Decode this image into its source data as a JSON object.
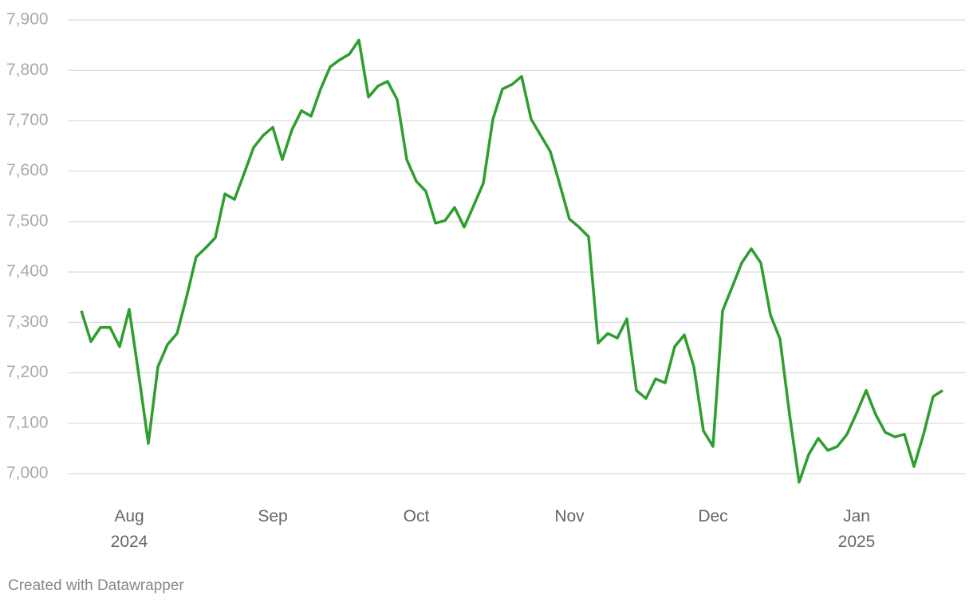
{
  "chart_data": {
    "type": "line",
    "categories": [
      null,
      null,
      null,
      null,
      null,
      "Aug 2024",
      null,
      null,
      null,
      null,
      null,
      null,
      null,
      null,
      null,
      null,
      null,
      null,
      null,
      null,
      "Sep",
      null,
      null,
      null,
      null,
      null,
      null,
      null,
      null,
      null,
      null,
      null,
      null,
      null,
      null,
      "Oct",
      null,
      null,
      null,
      null,
      null,
      null,
      null,
      null,
      null,
      null,
      null,
      null,
      null,
      null,
      null,
      "Nov",
      null,
      null,
      null,
      null,
      null,
      null,
      null,
      null,
      null,
      null,
      null,
      null,
      null,
      null,
      "Dec",
      null,
      null,
      null,
      null,
      null,
      null,
      null,
      null,
      null,
      null,
      null,
      null,
      null,
      null,
      "Jan 2025",
      null,
      null,
      null,
      null,
      null,
      null,
      null,
      null,
      null
    ],
    "values": [
      7323,
      7262,
      7290,
      7290,
      7252,
      7326,
      7196,
      7060,
      7212,
      7256,
      7278,
      7351,
      7430,
      7448,
      7468,
      7555,
      7544,
      7595,
      7647,
      7671,
      7687,
      7623,
      7682,
      7720,
      7709,
      7763,
      7807,
      7821,
      7832,
      7860,
      7747,
      7769,
      7778,
      7742,
      7623,
      7580,
      7560,
      7497,
      7502,
      7528,
      7489,
      7532,
      7576,
      7703,
      7763,
      7772,
      7788,
      7703,
      7671,
      7639,
      7573,
      7505,
      7489,
      7470,
      7259,
      7278,
      7269,
      7307,
      7165,
      7149,
      7188,
      7180,
      7252,
      7275,
      7212,
      7085,
      7054,
      7323,
      7370,
      7418,
      7446,
      7418,
      7315,
      7267,
      7117,
      6983,
      7038,
      7070,
      7046,
      7054,
      7078,
      7120,
      7165,
      7117,
      7082,
      7073,
      7078,
      7014,
      7078,
      7153,
      7165
    ],
    "color": "#2e9e2e",
    "ylim": [
      6950,
      7920
    ],
    "yticks": [
      {
        "value": 7000,
        "label": "7,000"
      },
      {
        "value": 7100,
        "label": "7,100"
      },
      {
        "value": 7200,
        "label": "7,200"
      },
      {
        "value": 7300,
        "label": "7,300"
      },
      {
        "value": 7400,
        "label": "7,400"
      },
      {
        "value": 7500,
        "label": "7,500"
      },
      {
        "value": 7600,
        "label": "7,600"
      },
      {
        "value": 7700,
        "label": "7,700"
      },
      {
        "value": 7800,
        "label": "7,800"
      },
      {
        "value": 7900,
        "label": "7,900"
      }
    ],
    "grid": true,
    "footer": "Created with Datawrapper"
  }
}
